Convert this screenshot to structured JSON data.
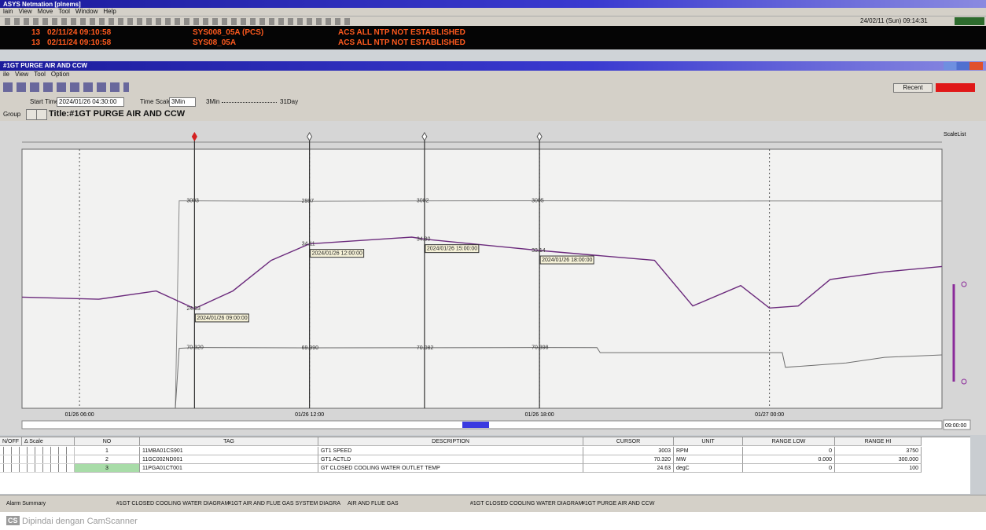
{
  "app": {
    "title": "ASYS Netmation [plnems]",
    "menu": [
      "lain",
      "View",
      "Move",
      "Tool",
      "Window",
      "Help"
    ],
    "clock": "24/02/11 (Sun) 09:14:31"
  },
  "alarms": [
    {
      "count": "13",
      "time": "02/11/24 09:10:58",
      "source": "SYS008_05A (PCS)",
      "message": "ACS ALL NTP NOT ESTABLISHED"
    },
    {
      "count": "13",
      "time": "02/11/24 09:10:58",
      "source": "SYS08_05A",
      "message": "ACS ALL NTP NOT ESTABLISHED"
    }
  ],
  "window": {
    "title": "#1GT PURGE AIR AND CCW",
    "menu": [
      "ile",
      "View",
      "Tool",
      "Option"
    ],
    "recent": "Recent",
    "start_time_label": "Start Time",
    "start_time": "2024/01/26 04:30:00",
    "time_scale_label": "Time Scale",
    "time_scale": "3Min",
    "scale_min": "3Min",
    "scale_max": "31Day",
    "group_label": "Group",
    "trend_title": "Title:#1GT PURGE AIR AND CCW",
    "scale_list": "ScaleList",
    "scroll_time": "09:00:00"
  },
  "chart_data": {
    "type": "line",
    "xlim": [
      "01/26 04:30",
      "01/27 04:30"
    ],
    "xticks": [
      "01/26 06:00",
      "01/26 12:00",
      "01/26 18:00",
      "01/27 00:00"
    ],
    "series": [
      {
        "color": "#8a8a8a",
        "ylim": [
          0,
          3750
        ],
        "x": [
          "01/26 08:30",
          "01/26 08:36",
          "01/26 09:00",
          "01/26 12:00",
          "01/26 15:00",
          "01/26 18:00",
          "01/26 21:00",
          "01/27 00:00",
          "01/27 04:30"
        ],
        "values": [
          0,
          3003,
          3003,
          2997,
          3002,
          3005,
          3000,
          3001,
          3000
        ]
      },
      {
        "color": "#6e6e6e",
        "ylim": [
          0,
          300
        ],
        "x": [
          "01/26 08:30",
          "01/26 08:36",
          "01/26 09:00",
          "01/26 12:00",
          "01/26 15:00",
          "01/26 18:00",
          "01/26 19:30",
          "01/26 19:35",
          "01/27 00:20",
          "01/27 00:25",
          "01/27 02:00",
          "01/27 03:00",
          "01/27 04:30"
        ],
        "values": [
          0,
          69.5,
          70.32,
          69.99,
          70.08,
          70.4,
          70.2,
          64.5,
          64.5,
          47.5,
          52.5,
          59,
          61.8
        ]
      },
      {
        "color": "#6b2a7c",
        "ylim": [
          10,
          48
        ],
        "x": [
          "01/26 04:30",
          "01/26 06:30",
          "01/26 08:00",
          "01/26 09:00",
          "01/26 10:00",
          "01/26 11:00",
          "01/26 12:00",
          "01/26 14:40",
          "01/26 15:00",
          "01/26 18:00",
          "01/26 21:00",
          "01/26 22:00",
          "01/26 23:15",
          "01/27 00:00",
          "01/27 00:45",
          "01/27 01:35",
          "01/27 03:00",
          "01/27 04:30"
        ],
        "values": [
          26.3,
          26,
          27.2,
          24.63,
          27.2,
          31.7,
          34.11,
          35.1,
          34.8,
          33.14,
          31.7,
          25,
          28,
          24.7,
          25,
          28.9,
          30,
          30.8
        ]
      }
    ],
    "cursors": [
      {
        "time": "2024/01/26 09:00:00",
        "readings": [
          "3003",
          "70.320",
          "24.63"
        ]
      },
      {
        "time": "2024/01/26 12:00:00",
        "readings": [
          "2997",
          "69.990",
          "34.11"
        ]
      },
      {
        "time": "2024/01/26 15:00:00",
        "readings": [
          "3002",
          "70.082",
          "34.80"
        ]
      },
      {
        "time": "2024/01/26 18:00:00",
        "readings": [
          "3005",
          "70.398",
          "33.14"
        ]
      }
    ]
  },
  "table": {
    "columns": [
      "N/OFF",
      "Δ Scale",
      "NO",
      "TAG",
      "DESCRIPTION",
      "CURSOR",
      "UNIT",
      "RANGE LOW",
      "RANGE HI"
    ],
    "rows": [
      [
        "1",
        "11MBA01CS901",
        "GT1 SPEED",
        "3003",
        "RPM",
        "0",
        "3750"
      ],
      [
        "2",
        "11GC002ND001",
        "GT1 ACTLD",
        "70.320",
        "MW",
        "0.000",
        "300.000"
      ],
      [
        "3",
        "11PGA01CT001",
        "GT CLOSED COOLING WATER OUTLET TEMP",
        "24.63",
        "degC",
        "0",
        "100"
      ]
    ]
  },
  "taskbar": [
    "Alarm Summary",
    "#1GT CLOSED COOLING WATER DIAGRAM",
    "#1GT AIR AND FLUE GAS SYSTEM DIAGRA",
    "AIR AND FLUE GAS",
    "#1GT CLOSED COOLING WATER DIAGRAM",
    "#1GT PURGE AIR AND CCW"
  ],
  "footer": {
    "logo": "CS",
    "text": "Dipindai dengan CamScanner"
  }
}
